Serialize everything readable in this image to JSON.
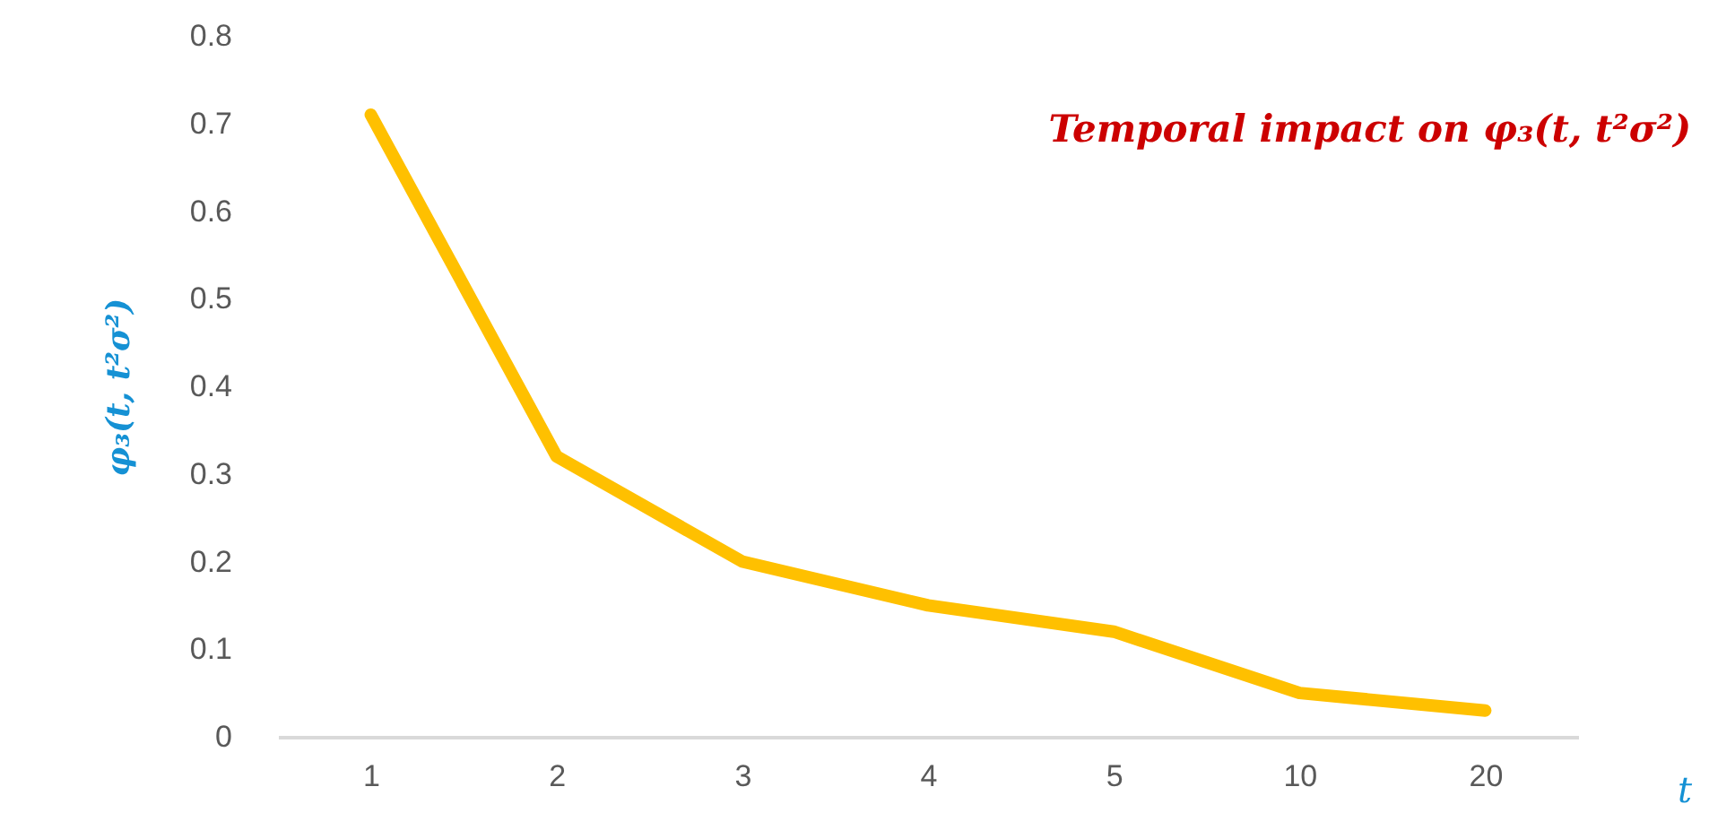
{
  "chart_data": {
    "type": "line",
    "title": "Temporal impact on φ₃(t, t²σ²)",
    "xlabel": "t",
    "ylabel": "φ₃(t, t²σ²)",
    "categories": [
      "1",
      "2",
      "3",
      "4",
      "5",
      "10",
      "20"
    ],
    "series": [
      {
        "color": "#ffc000",
        "values": [
          0.71,
          0.32,
          0.2,
          0.15,
          0.12,
          0.05,
          0.03
        ]
      }
    ],
    "ylim": [
      0,
      0.8
    ],
    "yticks": [
      {
        "value": 0,
        "label": "0"
      },
      0.1,
      0.2,
      0.3,
      0.4,
      0.5,
      0.6,
      0.7,
      0.8
    ],
    "grid": false,
    "marker": "none",
    "line_style": "solid"
  }
}
